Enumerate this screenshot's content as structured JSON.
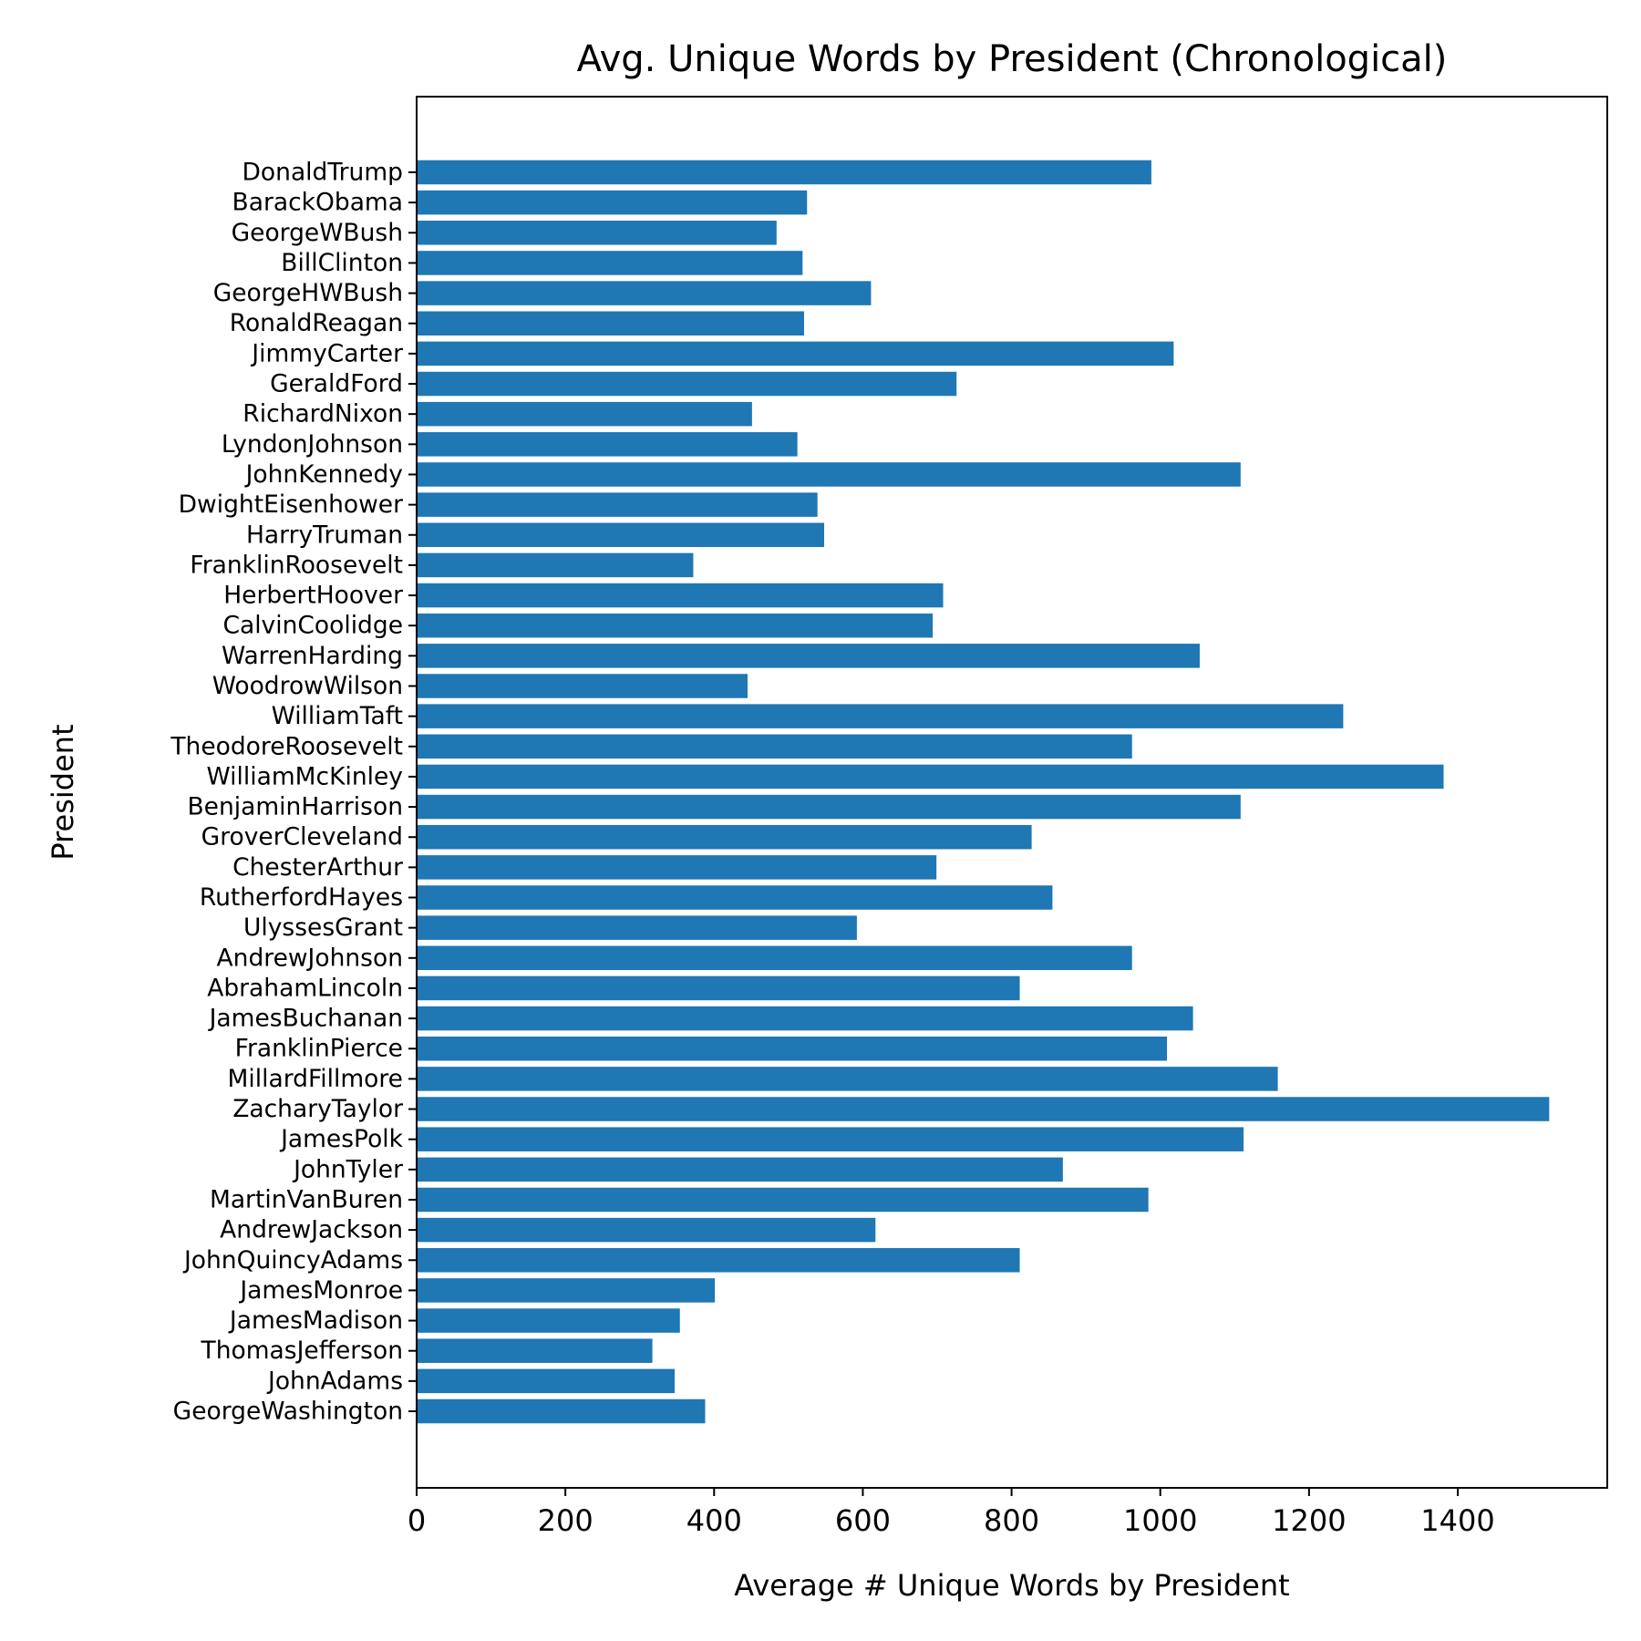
{
  "chart_data": {
    "type": "bar",
    "orientation": "horizontal",
    "title": "Avg. Unique Words by President (Chronological)",
    "xlabel": "Average # Unique Words by President",
    "ylabel": "President",
    "xlim": [
      0,
      1600
    ],
    "xticks": [
      0,
      200,
      400,
      600,
      800,
      1000,
      1200,
      1400
    ],
    "grid": false,
    "bar_color": "#1f77b4",
    "categories": [
      "GeorgeWashington",
      "JohnAdams",
      "ThomasJefferson",
      "JamesMadison",
      "JamesMonroe",
      "JohnQuincyAdams",
      "AndrewJackson",
      "MartinVanBuren",
      "JohnTyler",
      "JamesPolk",
      "ZacharyTaylor",
      "MillardFillmore",
      "FranklinPierce",
      "JamesBuchanan",
      "AbrahamLincoln",
      "AndrewJohnson",
      "UlyssesGrant",
      "RutherfordHayes",
      "ChesterArthur",
      "GroverCleveland",
      "BenjaminHarrison",
      "WilliamMcKinley",
      "TheodoreRoosevelt",
      "WilliamTaft",
      "WoodrowWilson",
      "WarrenHarding",
      "CalvinCoolidge",
      "HerbertHoover",
      "FranklinRoosevelt",
      "HarryTruman",
      "DwightEisenhower",
      "JohnKennedy",
      "LyndonJohnson",
      "RichardNixon",
      "GeraldFord",
      "JimmyCarter",
      "RonaldReagan",
      "GeorgeHWBush",
      "BillClinton",
      "GeorgeWBush",
      "BarackObama",
      "DonaldTrump"
    ],
    "values": [
      388,
      347,
      317,
      354,
      401,
      811,
      617,
      984,
      869,
      1112,
      1523,
      1158,
      1009,
      1044,
      811,
      962,
      592,
      855,
      699,
      827,
      1108,
      1381,
      962,
      1246,
      445,
      1053,
      694,
      708,
      372,
      548,
      539,
      1108,
      512,
      451,
      726,
      1018,
      521,
      611,
      519,
      484,
      525,
      988
    ]
  }
}
